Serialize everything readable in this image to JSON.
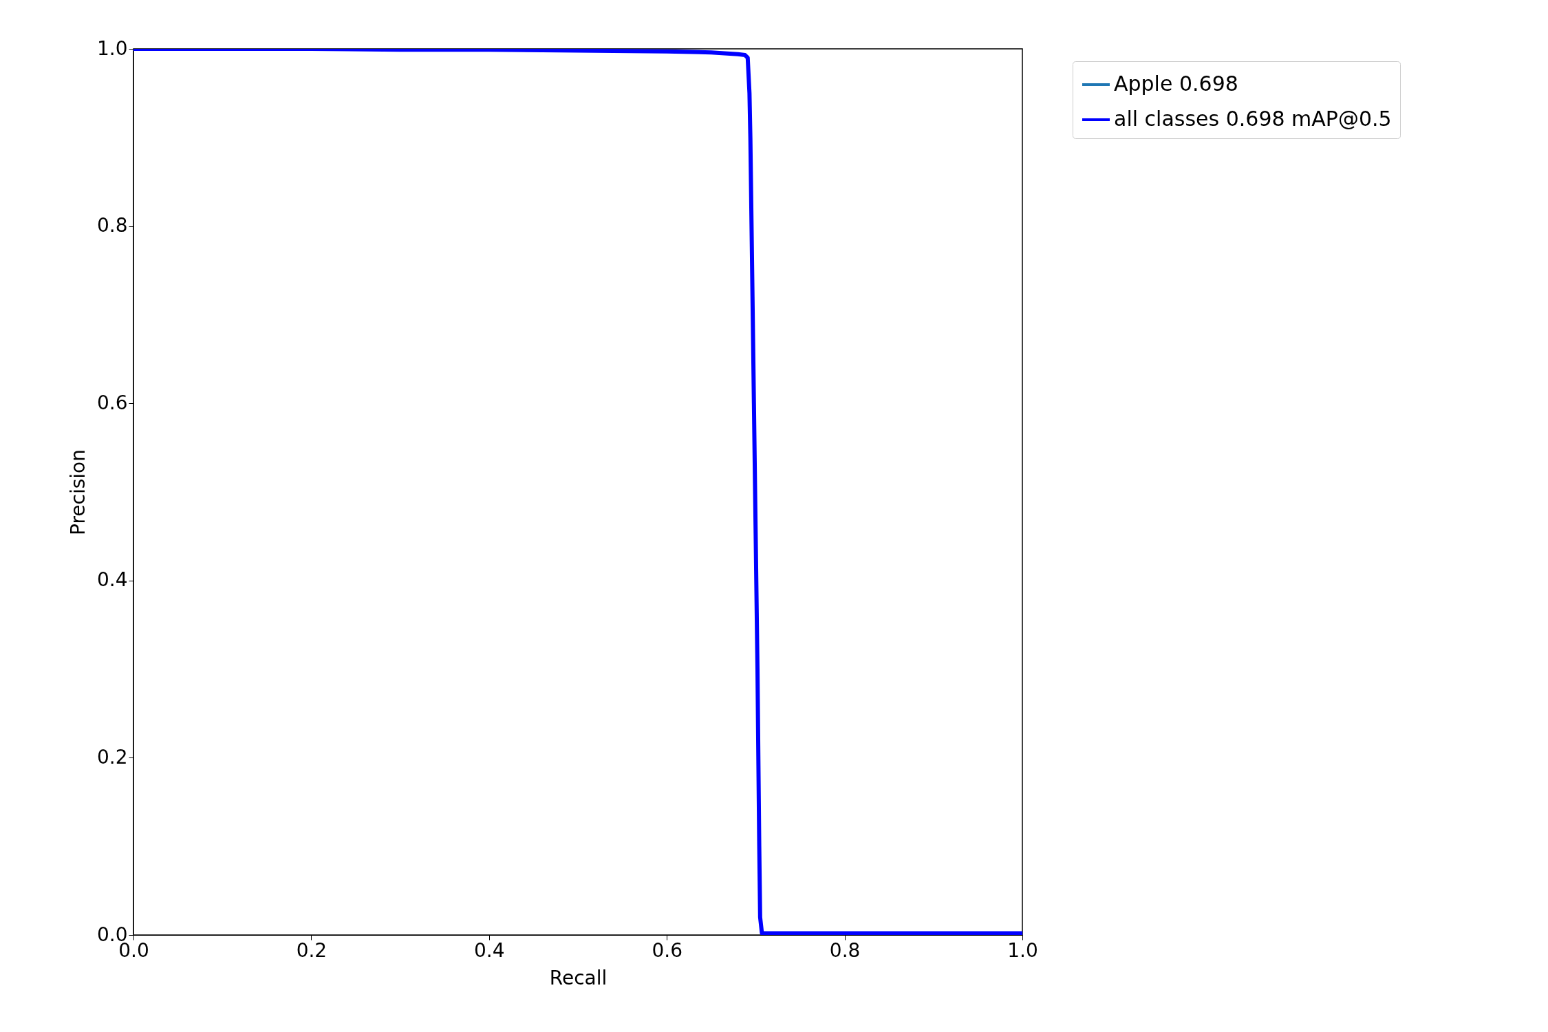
{
  "chart_data": {
    "type": "line",
    "xlabel": "Recall",
    "ylabel": "Precision",
    "xlim": [
      0,
      1
    ],
    "ylim": [
      0,
      1
    ],
    "xticks": [
      {
        "value": 0,
        "label": "0.0"
      },
      0.2,
      0.4,
      0.6,
      0.8,
      {
        "value": 1,
        "label": "1.0"
      }
    ],
    "yticks": [
      {
        "value": 0,
        "label": "0.0"
      },
      0.2,
      0.4,
      0.6,
      0.8,
      {
        "value": 1,
        "label": "1.0"
      }
    ],
    "grid": false,
    "legend": "top right",
    "marker": "none",
    "line_style": "solid",
    "x": [
      0,
      0.1,
      0.2,
      0.3,
      0.4,
      0.5,
      0.6,
      0.65,
      0.68,
      0.688,
      0.691,
      0.693,
      0.694,
      0.696,
      0.698,
      0.7,
      0.702,
      0.704,
      0.705,
      0.707,
      0.72,
      0.8,
      0.9,
      1.0
    ],
    "series": [
      {
        "name": "Apple 0.698",
        "color": "#1f77b4",
        "values": [
          null,
          null,
          null,
          null,
          null,
          null,
          null,
          null,
          null,
          null,
          null,
          null,
          null,
          null,
          null,
          null,
          null,
          null,
          null,
          null,
          null,
          null,
          null,
          null
        ]
      },
      {
        "name": "all classes 0.698 mAP@0.5",
        "color": "#0000ff",
        "values": [
          1,
          1,
          1,
          0.999,
          0.999,
          0.998,
          0.997,
          0.996,
          0.994,
          0.993,
          0.99,
          0.95,
          0.9,
          0.75,
          0.6,
          0.45,
          0.3,
          0.1,
          0.02,
          0.002,
          0.002,
          0.002,
          0.002,
          0.002
        ]
      }
    ]
  }
}
